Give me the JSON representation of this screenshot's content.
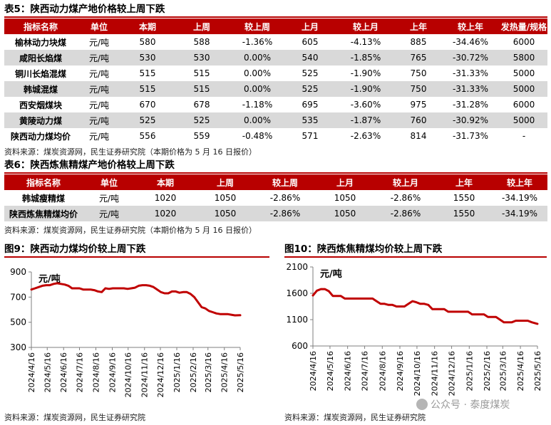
{
  "table5": {
    "title": "表5：陕西动力煤产地价格较上周下跌",
    "headers": [
      "指标名称",
      "单位",
      "本期",
      "上周",
      "较上周",
      "上月",
      "较上月",
      "上年",
      "较上年",
      "发热量/规格"
    ],
    "rows": [
      [
        "榆林动力块煤",
        "元/吨",
        "580",
        "588",
        "-1.36%",
        "605",
        "-4.13%",
        "885",
        "-34.46%",
        "6000"
      ],
      [
        "咸阳长焰煤",
        "元/吨",
        "530",
        "530",
        "0.00%",
        "540",
        "-1.85%",
        "765",
        "-30.72%",
        "5800"
      ],
      [
        "铜川长焰混煤",
        "元/吨",
        "515",
        "515",
        "0.00%",
        "525",
        "-1.90%",
        "750",
        "-31.33%",
        "5000"
      ],
      [
        "韩城混煤",
        "元/吨",
        "515",
        "515",
        "0.00%",
        "525",
        "-1.90%",
        "750",
        "-31.33%",
        "5000"
      ],
      [
        "西安烟煤块",
        "元/吨",
        "670",
        "678",
        "-1.18%",
        "695",
        "-3.60%",
        "975",
        "-31.28%",
        "6000"
      ],
      [
        "黄陵动力煤",
        "元/吨",
        "525",
        "525",
        "0.00%",
        "535",
        "-1.87%",
        "760",
        "-30.92%",
        "5000"
      ],
      [
        "陕西动力煤均价",
        "元/吨",
        "556",
        "559",
        "-0.48%",
        "571",
        "-2.63%",
        "814",
        "-31.73%",
        "-"
      ]
    ],
    "source": "资料来源：煤炭资源网，民生证券研究院（本期价格为 5 月 16 日报价）"
  },
  "table6": {
    "title": "表6：陕西炼焦精煤产地价格较上周下跌",
    "headers": [
      "指标名称",
      "单位",
      "本期",
      "上周",
      "较上周",
      "上月",
      "较上月",
      "上年",
      "较上年"
    ],
    "rows": [
      [
        "韩城瘦精煤",
        "元/吨",
        "1020",
        "1050",
        "-2.86%",
        "1050",
        "-2.86%",
        "1550",
        "-34.19%"
      ],
      [
        "陕西炼焦精煤均价",
        "元/吨",
        "1020",
        "1050",
        "-2.86%",
        "1050",
        "-2.86%",
        "1550",
        "-34.19%"
      ]
    ],
    "source": "资料来源：煤炭资源网，民生证券研究院（本期价格为 5 月 16 日报价）"
  },
  "chart_data": [
    {
      "type": "line",
      "title": "图9：陕西动力煤均价较上周下跌",
      "ylabel": "元/吨",
      "ylim": [
        300,
        900
      ],
      "yticks": [
        300,
        500,
        700,
        900
      ],
      "x_tick_labels": [
        "2024/4/16",
        "2024/5/16",
        "2024/6/16",
        "2024/7/16",
        "2024/8/16",
        "2024/9/16",
        "2024/10/16",
        "2024/11/16",
        "2024/12/16",
        "2025/1/16",
        "2025/2/16",
        "2025/3/16",
        "2025/4/16",
        "2025/5/16"
      ],
      "series": [
        {
          "color": "#c00000",
          "x": [
            "2024/4/16",
            "2024/4/23",
            "2024/4/30",
            "2024/5/7",
            "2024/5/14",
            "2024/5/21",
            "2024/5/28",
            "2024/6/4",
            "2024/6/11",
            "2024/6/18",
            "2024/6/25",
            "2024/7/2",
            "2024/7/9",
            "2024/7/16",
            "2024/7/23",
            "2024/7/30",
            "2024/8/6",
            "2024/8/13",
            "2024/8/20",
            "2024/8/27",
            "2024/9/3",
            "2024/9/10",
            "2024/9/17",
            "2024/9/24",
            "2024/10/1",
            "2024/10/8",
            "2024/10/15",
            "2024/10/22",
            "2024/10/29",
            "2024/11/5",
            "2024/11/12",
            "2024/11/19",
            "2024/11/26",
            "2024/12/3",
            "2024/12/10",
            "2024/12/17",
            "2024/12/24",
            "2024/12/31",
            "2025/1/7",
            "2025/1/14",
            "2025/1/21",
            "2025/1/28",
            "2025/2/4",
            "2025/2/11",
            "2025/2/18",
            "2025/2/25",
            "2025/3/4",
            "2025/3/11",
            "2025/3/18",
            "2025/3/25",
            "2025/4/1",
            "2025/4/8",
            "2025/4/15",
            "2025/4/22",
            "2025/4/29",
            "2025/5/6",
            "2025/5/16"
          ],
          "y": [
            760,
            770,
            780,
            790,
            795,
            795,
            805,
            810,
            805,
            800,
            790,
            770,
            770,
            770,
            760,
            760,
            760,
            755,
            745,
            740,
            770,
            765,
            770,
            770,
            770,
            770,
            765,
            770,
            775,
            790,
            795,
            795,
            790,
            780,
            760,
            740,
            730,
            730,
            745,
            745,
            735,
            740,
            740,
            725,
            700,
            660,
            620,
            610,
            590,
            580,
            570,
            565,
            565,
            565,
            560,
            555,
            556
          ]
        }
      ],
      "source": "资料来源：煤炭资源网，民生证券研究院"
    },
    {
      "type": "line",
      "title": "图10：陕西炼焦精煤均价较上周下跌",
      "ylabel": "元/吨",
      "ylim": [
        600,
        2100
      ],
      "yticks": [
        600,
        1100,
        1600,
        2100
      ],
      "x_tick_labels": [
        "2024/4/16",
        "2024/5/16",
        "2024/6/16",
        "2024/7/16",
        "2024/8/16",
        "2024/9/16",
        "2024/10/16",
        "2024/11/16",
        "2024/12/16",
        "2025/1/16",
        "2025/2/16",
        "2025/3/16",
        "2025/4/16",
        "2025/5/16"
      ],
      "series": [
        {
          "color": "#c00000",
          "x": [
            "2024/4/16",
            "2024/4/23",
            "2024/4/30",
            "2024/5/7",
            "2024/5/14",
            "2024/5/21",
            "2024/5/28",
            "2024/6/4",
            "2024/6/11",
            "2024/6/18",
            "2024/6/25",
            "2024/7/2",
            "2024/7/9",
            "2024/7/16",
            "2024/7/23",
            "2024/7/30",
            "2024/8/6",
            "2024/8/13",
            "2024/8/20",
            "2024/8/27",
            "2024/9/3",
            "2024/9/10",
            "2024/9/17",
            "2024/9/24",
            "2024/10/1",
            "2024/10/8",
            "2024/10/15",
            "2024/10/22",
            "2024/10/29",
            "2024/11/5",
            "2024/11/12",
            "2024/11/19",
            "2024/11/26",
            "2024/12/3",
            "2024/12/10",
            "2024/12/17",
            "2024/12/24",
            "2024/12/31",
            "2025/1/7",
            "2025/1/14",
            "2025/1/21",
            "2025/1/28",
            "2025/2/4",
            "2025/2/11",
            "2025/2/18",
            "2025/2/25",
            "2025/3/4",
            "2025/3/11",
            "2025/3/18",
            "2025/3/25",
            "2025/4/1",
            "2025/4/8",
            "2025/4/15",
            "2025/4/22",
            "2025/4/29",
            "2025/5/6",
            "2025/5/16"
          ],
          "y": [
            1560,
            1650,
            1680,
            1680,
            1640,
            1550,
            1550,
            1550,
            1500,
            1500,
            1500,
            1500,
            1500,
            1500,
            1500,
            1500,
            1450,
            1400,
            1400,
            1380,
            1380,
            1350,
            1350,
            1350,
            1400,
            1450,
            1430,
            1400,
            1400,
            1380,
            1300,
            1300,
            1300,
            1300,
            1250,
            1250,
            1250,
            1250,
            1250,
            1250,
            1200,
            1200,
            1200,
            1200,
            1150,
            1150,
            1150,
            1100,
            1050,
            1050,
            1050,
            1080,
            1080,
            1080,
            1080,
            1050,
            1020
          ]
        }
      ],
      "source": "资料来源：煤炭资源网，民生证券研究院"
    }
  ],
  "watermark": "公众号 · 泰度煤炭"
}
